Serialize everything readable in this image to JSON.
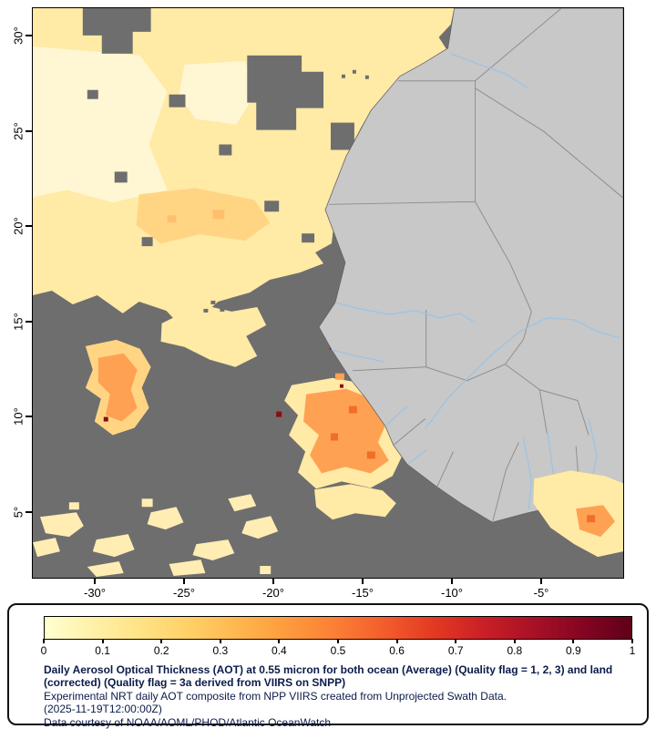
{
  "map": {
    "colors": {
      "no_data": "#6e6e6e",
      "land": "#c8c8c8",
      "coast": "#646464",
      "border": "#8f8f8f",
      "river": "#9cc4e4",
      "aot_pale": "#ffeaa6",
      "aot_cream": "#fff6d4",
      "aot_tint": "#ffd584",
      "aot_mid": "#ffbf6e",
      "aot_orange": "#ffa153",
      "aot_deep": "#f26d28",
      "aot_dark_red": "#8a0d12",
      "aot_noise": "#ffedb4"
    }
  },
  "axes": {
    "lat": [
      "30°",
      "25°",
      "20°",
      "15°",
      "10°",
      "5°"
    ],
    "lon": [
      "-30°",
      "-25°",
      "-20°",
      "-15°",
      "-10°",
      "-5°"
    ]
  },
  "legend": {
    "gradient": [
      "#ffffd0",
      "#fff0a8",
      "#ffe283",
      "#ffcf66",
      "#ffb54d",
      "#fe9a3d",
      "#fb7d35",
      "#f25b2b",
      "#e23822",
      "#c91f26",
      "#a81126",
      "#850522",
      "#5f001a"
    ],
    "ticks": [
      "0",
      "0.1",
      "0.2",
      "0.3",
      "0.4",
      "0.5",
      "0.6",
      "0.7",
      "0.8",
      "0.9",
      "1"
    ],
    "title": "Daily Aerosol Optical Thickness (AOT) at 0.55 micron for both ocean (Average) (Quality flag = 1, 2, 3) and land (corrected) (Quality flag = 3a derived from VIIRS on SNPP)",
    "line2": "Experimental NRT daily AOT composite from NPP VIIRS created from Unprojected Swath Data.",
    "timestamp": "(2025-11-19T12:00:00Z)",
    "credit": "Data courtesy of NOAA/AOML/PHOD/Atlantic OceanWatch",
    "text_color": "#0b1b4a"
  }
}
